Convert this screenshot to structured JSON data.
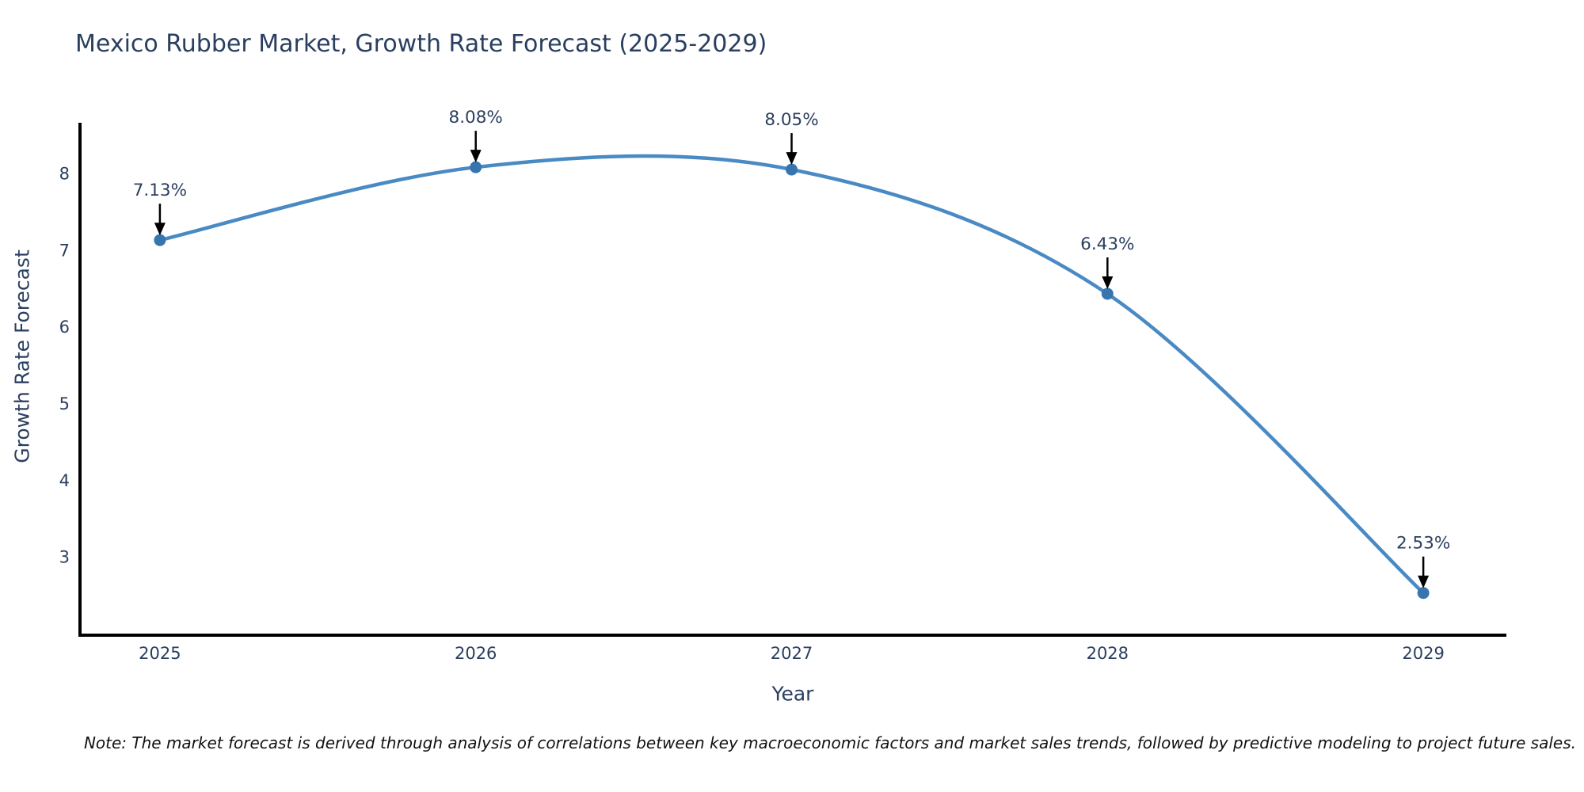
{
  "chart_data": {
    "type": "line",
    "title": "Mexico Rubber Market, Growth Rate Forecast (2025-2029)",
    "xlabel": "Year",
    "ylabel": "Growth Rate Forecast",
    "x": [
      2025,
      2026,
      2027,
      2028,
      2029
    ],
    "values": [
      7.13,
      8.08,
      8.05,
      6.43,
      2.53
    ],
    "point_labels": [
      "7.13%",
      "8.08%",
      "8.05%",
      "6.43%",
      "2.53%"
    ],
    "xticks": [
      "2025",
      "2026",
      "2027",
      "2028",
      "2029"
    ],
    "yticks": [
      3,
      4,
      5,
      6,
      7,
      8
    ],
    "xlim": [
      2024.747,
      2029.263
    ],
    "ylim": [
      1.98,
      8.66
    ],
    "grid": false,
    "legend": false,
    "line_shape": "spline",
    "colors": {
      "line": "#4a8ac4",
      "marker": "#3875af",
      "axis": "#000000",
      "arrow": "#000000",
      "text": "#2a3f5f",
      "note": "#111111"
    },
    "note": "Note: The market forecast is derived through analysis of correlations between key macroeconomic factors and market sales trends, followed by predictive modeling to project future sales."
  }
}
